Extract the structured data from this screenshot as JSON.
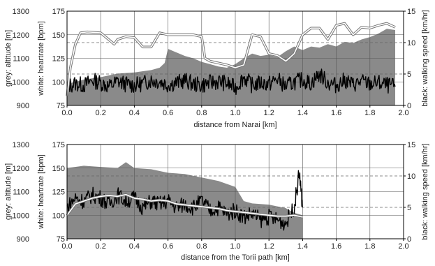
{
  "chart_data": [
    {
      "type": "line",
      "xlabel": "distance from Narai [km]",
      "ylabel_altitude": "grey: altitude [m]",
      "ylabel_heartrate": "white: heartrate [bpm]",
      "ylabel_speed": "black: walking speed [km/hr]",
      "xlim": [
        0,
        2.0
      ],
      "x_ticks": [
        "0.0",
        "0.2",
        "0.4",
        "0.6",
        "0.8",
        "1.0",
        "1.2",
        "1.4",
        "1.6",
        "1.8",
        "2.0"
      ],
      "altitude_ylim": [
        900,
        1300
      ],
      "altitude_ticks": [
        "900",
        "1000",
        "1100",
        "1200",
        "1300"
      ],
      "heartrate_ylim": [
        75,
        175
      ],
      "heartrate_ticks": [
        "75",
        "100",
        "125",
        "150",
        "175"
      ],
      "speed_ylim": [
        0,
        15
      ],
      "speed_ticks": [
        "0",
        "5",
        "10",
        "15"
      ],
      "grid": true,
      "reference_speed_lines": [
        5,
        10
      ],
      "altitude": {
        "x": [
          0,
          0.1,
          0.2,
          0.3,
          0.4,
          0.5,
          0.55,
          0.58,
          0.6,
          0.65,
          0.7,
          0.75,
          0.8,
          0.85,
          0.9,
          0.95,
          1.0,
          1.05,
          1.1,
          1.15,
          1.2,
          1.25,
          1.3,
          1.35,
          1.4,
          1.45,
          1.5,
          1.55,
          1.6,
          1.65,
          1.7,
          1.75,
          1.8,
          1.85,
          1.9,
          1.95
        ],
        "values": [
          990,
          1010,
          1020,
          1035,
          1040,
          1050,
          1060,
          1080,
          1140,
          1125,
          1110,
          1100,
          1085,
          1075,
          1065,
          1060,
          1075,
          1100,
          1120,
          1110,
          1115,
          1105,
          1130,
          1150,
          1135,
          1150,
          1145,
          1160,
          1150,
          1170,
          1165,
          1180,
          1190,
          1205,
          1225,
          1220
        ]
      },
      "heartrate": {
        "x": [
          0,
          0.02,
          0.05,
          0.08,
          0.12,
          0.2,
          0.28,
          0.3,
          0.35,
          0.4,
          0.45,
          0.5,
          0.55,
          0.6,
          0.65,
          0.7,
          0.75,
          0.8,
          0.82,
          0.85,
          0.9,
          0.95,
          1.0,
          1.05,
          1.1,
          1.15,
          1.2,
          1.25,
          1.3,
          1.32,
          1.35,
          1.4,
          1.45,
          1.5,
          1.55,
          1.6,
          1.65,
          1.7,
          1.75,
          1.8,
          1.85,
          1.9,
          1.95
        ],
        "values": [
          85,
          115,
          140,
          152,
          153,
          152,
          140,
          145,
          148,
          147,
          137,
          137,
          152,
          150,
          150,
          150,
          150,
          148,
          125,
          122,
          120,
          118,
          115,
          118,
          150,
          148,
          130,
          128,
          122,
          125,
          130,
          150,
          157,
          157,
          145,
          160,
          162,
          150,
          158,
          157,
          160,
          162,
          158
        ]
      },
      "speed": {
        "x": [
          0,
          0.05,
          0.1,
          0.15,
          0.2,
          0.25,
          0.3,
          0.35,
          0.4,
          0.45,
          0.5,
          0.55,
          0.6,
          0.65,
          0.7,
          0.75,
          0.8,
          0.85,
          0.9,
          0.95,
          1.0,
          1.05,
          1.1,
          1.15,
          1.2,
          1.25,
          1.3,
          1.35,
          1.4,
          1.45,
          1.5,
          1.55,
          1.6,
          1.65,
          1.7,
          1.75,
          1.8,
          1.85,
          1.9,
          1.95
        ],
        "values": [
          3,
          3.5,
          3.2,
          4,
          3.6,
          3,
          3.8,
          3.4,
          3.2,
          3.5,
          4,
          3.8,
          3.3,
          3.6,
          4,
          3.4,
          3.2,
          3.6,
          3.8,
          3.5,
          2.8,
          4.5,
          3.2,
          3.6,
          3.4,
          4.2,
          3,
          3.7,
          4.1,
          3.5,
          5,
          3.6,
          3.2,
          4,
          3.3,
          3.8,
          3.4,
          3.6,
          3.2,
          3
        ]
      }
    },
    {
      "type": "line",
      "xlabel": "distance from the Torii path [km]",
      "ylabel_altitude": "grey: altitude [m]",
      "ylabel_heartrate": "white: heartrate [bpm]",
      "ylabel_speed": "black: walking speed [km/hr]",
      "xlim": [
        0,
        2.0
      ],
      "x_ticks": [
        "0.0",
        "0.2",
        "0.4",
        "0.6",
        "0.8",
        "1.0",
        "1.2",
        "1.4",
        "1.6",
        "1.8",
        "2.0"
      ],
      "altitude_ylim": [
        900,
        1300
      ],
      "altitude_ticks": [
        "900",
        "1000",
        "1100",
        "1200",
        "1300"
      ],
      "heartrate_ylim": [
        75,
        175
      ],
      "heartrate_ticks": [
        "75",
        "100",
        "125",
        "150",
        "175"
      ],
      "speed_ylim": [
        0,
        15
      ],
      "speed_ticks": [
        "0",
        "5",
        "10",
        "15"
      ],
      "grid": true,
      "reference_speed_lines": [
        5,
        10
      ],
      "altitude": {
        "x": [
          0,
          0.1,
          0.2,
          0.3,
          0.35,
          0.4,
          0.5,
          0.6,
          0.7,
          0.8,
          0.9,
          1.0,
          1.05,
          1.1,
          1.2,
          1.3,
          1.35,
          1.4
        ],
        "values": [
          1200,
          1210,
          1205,
          1200,
          1225,
          1200,
          1195,
          1180,
          1175,
          1160,
          1145,
          1120,
          1060,
          1050,
          1045,
          1030,
          1010,
          1000
        ]
      },
      "heartrate": {
        "x": [
          0,
          0.05,
          0.1,
          0.15,
          0.2,
          0.25,
          0.3,
          0.35,
          0.4,
          0.45,
          0.5,
          0.55,
          0.6,
          0.65,
          0.7,
          0.75,
          0.8,
          0.85,
          0.9,
          0.95,
          1.0,
          1.05,
          1.1,
          1.15,
          1.2,
          1.25,
          1.3,
          1.35,
          1.4
        ],
        "values": [
          100,
          112,
          115,
          118,
          120,
          121,
          120,
          122,
          118,
          117,
          115,
          116,
          115,
          112,
          111,
          110,
          109,
          108,
          107,
          105,
          104,
          103,
          102,
          101,
          100,
          99,
          99,
          100,
          98
        ]
      },
      "speed": {
        "x": [
          0,
          0.05,
          0.1,
          0.15,
          0.2,
          0.25,
          0.3,
          0.35,
          0.4,
          0.45,
          0.5,
          0.55,
          0.6,
          0.65,
          0.7,
          0.75,
          0.8,
          0.85,
          0.9,
          0.95,
          1.0,
          1.05,
          1.1,
          1.15,
          1.2,
          1.25,
          1.3,
          1.35,
          1.38,
          1.4
        ],
        "values": [
          5,
          6.5,
          6,
          7,
          6.5,
          5.5,
          7,
          6,
          6.5,
          5,
          6,
          5.5,
          6,
          5,
          5.5,
          5,
          6,
          4.5,
          5,
          4,
          4.5,
          3.5,
          4,
          3,
          3.5,
          3,
          2.5,
          5,
          10.5,
          5
        ]
      }
    }
  ]
}
